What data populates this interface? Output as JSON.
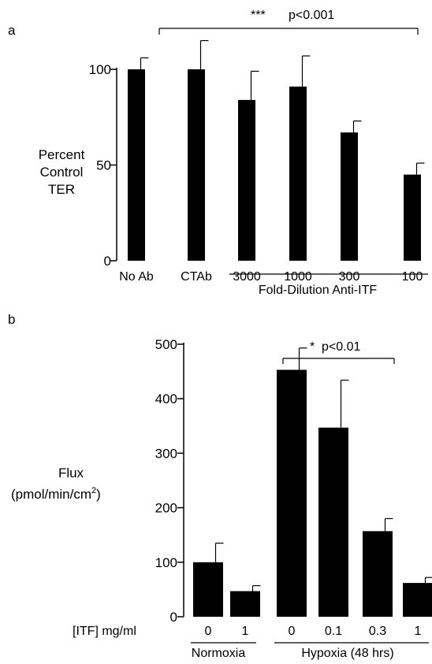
{
  "chart_data": [
    {
      "type": "bar",
      "panel_label": "a",
      "ylabel_lines": [
        "Percent",
        "Control",
        "TER"
      ],
      "ylim": [
        0,
        100
      ],
      "yticks": [
        "0",
        "50",
        "100"
      ],
      "categories": [
        "No Ab",
        "CTAb",
        "3000",
        "1000",
        "300",
        "100"
      ],
      "values": [
        100,
        100,
        84,
        91,
        67,
        45
      ],
      "errors": [
        6,
        15,
        15,
        16,
        6,
        6
      ],
      "group_label": "Fold-Dilution Anti-ITF",
      "significance": {
        "stars": "***",
        "text": "p<0.001"
      },
      "colors": {
        "bar": "#000000"
      }
    },
    {
      "type": "bar",
      "panel_label": "b",
      "ylabel_lines": [
        "Flux",
        "(pmol/min/cm",
        "2",
        ")"
      ],
      "ylim": [
        0,
        500
      ],
      "yticks": [
        "0",
        "100",
        "200",
        "300",
        "400",
        "500"
      ],
      "row_label": "[ITF] mg/ml",
      "categories": [
        "0",
        "1",
        "0",
        "0.1",
        "0.3",
        "1"
      ],
      "values": [
        100,
        47,
        453,
        347,
        157,
        62
      ],
      "errors": [
        35,
        10,
        40,
        87,
        23,
        10
      ],
      "groups": [
        "Normoxia",
        "Hypoxia (48 hrs)"
      ],
      "significance": {
        "stars": "*",
        "text": "p<0.01"
      },
      "colors": {
        "bar": "#000000"
      }
    }
  ]
}
